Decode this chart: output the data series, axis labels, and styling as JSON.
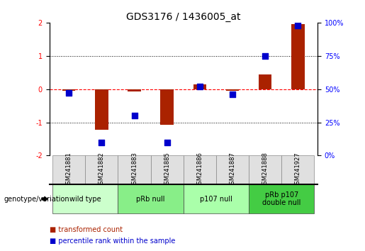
{
  "title": "GDS3176 / 1436005_at",
  "samples": [
    "GSM241881",
    "GSM241882",
    "GSM241883",
    "GSM241885",
    "GSM241886",
    "GSM241887",
    "GSM241888",
    "GSM241927"
  ],
  "red_bars": [
    -0.05,
    -1.22,
    -0.08,
    -1.08,
    0.15,
    -0.05,
    0.45,
    1.95
  ],
  "blue_dots": [
    47,
    10,
    30,
    10,
    52,
    46,
    75,
    98
  ],
  "groups_def": [
    {
      "label": "wild type",
      "start": 0,
      "end": 1,
      "color": "#ccffcc"
    },
    {
      "label": "pRb null",
      "start": 2,
      "end": 3,
      "color": "#88ee88"
    },
    {
      "label": "p107 null",
      "start": 4,
      "end": 5,
      "color": "#aaffaa"
    },
    {
      "label": "pRb p107\ndouble null",
      "start": 6,
      "end": 7,
      "color": "#44cc44"
    }
  ],
  "left_ylim": [
    -2,
    2
  ],
  "right_ylim": [
    0,
    100
  ],
  "left_yticks": [
    -2,
    -1,
    0,
    1,
    2
  ],
  "right_yticks": [
    0,
    25,
    50,
    75,
    100
  ],
  "right_yticklabels": [
    "0%",
    "25%",
    "50%",
    "75%",
    "100%"
  ],
  "bar_color": "#aa2200",
  "dot_color": "#0000cc",
  "dot_size": 30,
  "bar_width": 0.4,
  "legend_items": [
    {
      "label": "transformed count",
      "color": "#aa2200"
    },
    {
      "label": "percentile rank within the sample",
      "color": "#0000cc"
    }
  ],
  "genotype_label": "genotype/variation",
  "background_color": "#ffffff",
  "plot_bg": "#ffffff",
  "tick_label_fontsize": 7,
  "title_fontsize": 10,
  "gsm_fontsize": 6,
  "group_fontsize": 7
}
